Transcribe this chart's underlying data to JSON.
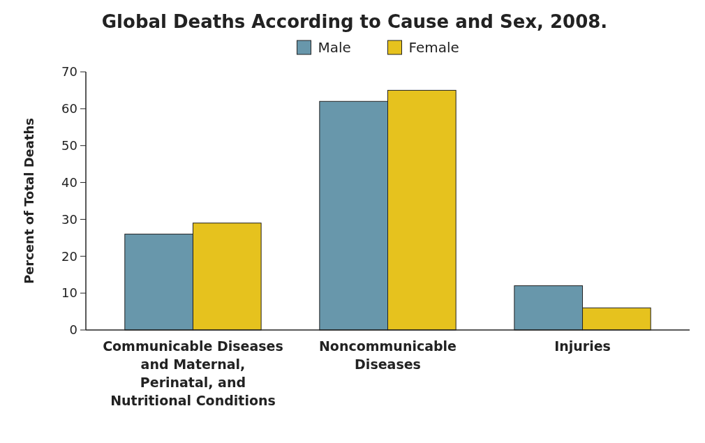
{
  "chart_data": {
    "type": "bar",
    "title": "Global Deaths According to Cause and Sex, 2008.",
    "ylabel": "Percent of Total Deaths",
    "categories": [
      "Communicable Diseases and Maternal, Perinatal, and Nutritional Conditions",
      "Noncommunicable Diseases",
      "Injuries"
    ],
    "series": [
      {
        "name": "Male",
        "color": "#6897ab",
        "values": [
          26,
          62,
          12
        ]
      },
      {
        "name": "Female",
        "color": "#e6c21e",
        "values": [
          29,
          65,
          6
        ]
      }
    ],
    "ylim": [
      0,
      70
    ],
    "yticks": [
      0,
      10,
      20,
      30,
      40,
      50,
      60,
      70
    ],
    "legend": "top",
    "grid": false
  }
}
